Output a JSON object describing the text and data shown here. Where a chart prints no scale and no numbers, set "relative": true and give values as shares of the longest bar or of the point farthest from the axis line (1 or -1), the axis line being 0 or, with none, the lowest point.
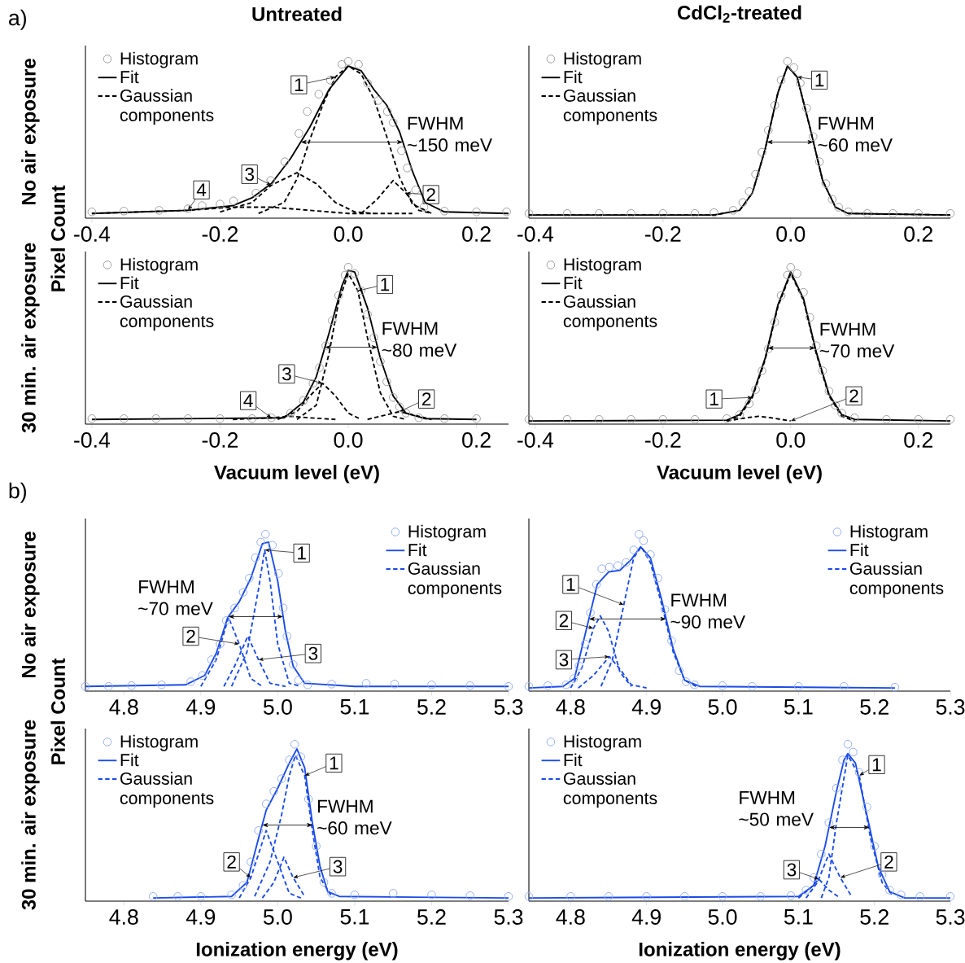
{
  "chart_data": [
    {
      "type": "line",
      "relative": true,
      "title": "Untreated",
      "ylabel": "No air exposure",
      "xlim": [
        -0.41,
        0.25
      ],
      "xticks": [
        {
          "value": -0.4,
          "label": "-0.4"
        },
        {
          "value": -0.2,
          "label": "-0.2"
        },
        {
          "value": 0.0,
          "label": "0.0"
        },
        {
          "value": 0.2,
          "label": "0.2"
        }
      ],
      "legend": "top left",
      "annotations": [
        "a)",
        "Pixel Count",
        {
          "text": "1",
          "x": -0.077,
          "y": 0.85
        },
        {
          "text": "2",
          "x": 0.129,
          "y": 0.15
        },
        {
          "text": "3",
          "x": -0.154,
          "y": 0.28
        },
        {
          "text": "4",
          "x": -0.229,
          "y": 0.18
        },
        "FWHM ~150 meV"
      ],
      "series": [
        {
          "name": "Histogram",
          "type": "scatter",
          "marker": "circle",
          "color": "#999999",
          "x": [
            -0.4,
            -0.35,
            -0.295,
            -0.25,
            -0.228,
            -0.2,
            -0.179,
            -0.144,
            -0.121,
            -0.099,
            -0.077,
            -0.064,
            -0.046,
            -0.028,
            -0.01,
            0.0,
            0.016,
            0.03,
            0.047,
            0.061,
            0.07,
            0.083,
            0.092,
            0.105,
            0.118,
            0.15,
            0.2,
            0.247
          ],
          "values": [
            0.04,
            0.045,
            0.05,
            0.06,
            0.08,
            0.09,
            0.11,
            0.16,
            0.24,
            0.36,
            0.54,
            0.68,
            0.79,
            0.88,
            0.98,
            1.0,
            0.98,
            0.86,
            0.75,
            0.68,
            0.61,
            0.43,
            0.32,
            0.18,
            0.07,
            0.045,
            0.04,
            0.04
          ]
        },
        {
          "name": "Fit",
          "line_style": "solid",
          "color": "#000000",
          "x": [
            -0.4,
            -0.25,
            -0.18,
            -0.15,
            -0.12,
            -0.09,
            -0.06,
            -0.03,
            0.0,
            0.02,
            0.04,
            0.06,
            0.08,
            0.1,
            0.12,
            0.15,
            0.25
          ],
          "values": [
            0.03,
            0.05,
            0.08,
            0.13,
            0.22,
            0.38,
            0.58,
            0.82,
            0.97,
            0.94,
            0.82,
            0.72,
            0.55,
            0.3,
            0.1,
            0.04,
            0.03
          ]
        },
        {
          "name": "Gaussian components",
          "line_style": "dashed",
          "color": "#000000",
          "x": [
            -0.14,
            -0.1,
            -0.08,
            -0.06,
            -0.04,
            -0.02,
            0.0,
            0.02,
            0.04,
            0.06,
            0.08,
            0.1,
            0.13
          ],
          "values": [
            0.03,
            0.1,
            0.25,
            0.5,
            0.72,
            0.9,
            0.97,
            0.92,
            0.76,
            0.52,
            0.26,
            0.09,
            0.03
          ]
        },
        {
          "line_style": "dashed",
          "color": "#000000",
          "x": [
            0.02,
            0.045,
            0.07,
            0.09,
            0.11,
            0.13
          ],
          "values": [
            0.03,
            0.12,
            0.24,
            0.16,
            0.05,
            0.03
          ]
        },
        {
          "line_style": "dashed",
          "color": "#000000",
          "x": [
            -0.2,
            -0.15,
            -0.12,
            -0.08,
            -0.05,
            -0.02,
            0.01,
            0.04
          ],
          "values": [
            0.04,
            0.1,
            0.21,
            0.29,
            0.22,
            0.1,
            0.04,
            0.03
          ]
        },
        {
          "line_style": "dashed",
          "color": "#000000",
          "x": [
            -0.4,
            -0.25,
            -0.18,
            -0.12,
            -0.06,
            0.0,
            0.1
          ],
          "values": [
            0.03,
            0.05,
            0.07,
            0.07,
            0.05,
            0.03,
            0.03
          ]
        }
      ]
    },
    {
      "type": "line",
      "relative": true,
      "title": "CdCl$_{2}$-treated",
      "xlim": [
        -0.41,
        0.25
      ],
      "xticks": [
        {
          "value": -0.4,
          "label": "-0.4"
        },
        {
          "value": -0.2,
          "label": "-0.2"
        },
        {
          "value": 0.0,
          "label": "0.0"
        },
        {
          "value": 0.2,
          "label": "0.2"
        }
      ],
      "legend": "top left",
      "annotations": [
        {
          "text": "1",
          "x": 0.045,
          "y": 0.88
        },
        "FWHM ~60 meV"
      ],
      "series": [
        {
          "name": "Histogram",
          "type": "scatter",
          "marker": "circle",
          "color": "#999999",
          "x": [
            -0.41,
            -0.35,
            -0.3,
            -0.25,
            -0.2,
            -0.15,
            -0.12,
            -0.09,
            -0.075,
            -0.065,
            -0.055,
            -0.045,
            -0.035,
            -0.025,
            -0.015,
            -0.005,
            0.005,
            0.015,
            0.025,
            0.035,
            0.045,
            0.055,
            0.065,
            0.075,
            0.09,
            0.12,
            0.16,
            0.2,
            0.25
          ],
          "values": [
            0.03,
            0.03,
            0.03,
            0.03,
            0.03,
            0.03,
            0.035,
            0.05,
            0.1,
            0.17,
            0.28,
            0.42,
            0.56,
            0.72,
            0.88,
            1.0,
            0.96,
            0.86,
            0.7,
            0.52,
            0.36,
            0.22,
            0.12,
            0.07,
            0.04,
            0.03,
            0.03,
            0.03,
            0.03
          ]
        },
        {
          "name": "Fit",
          "line_style": "solid",
          "color": "#000000",
          "x": [
            -0.41,
            -0.12,
            -0.08,
            -0.06,
            -0.04,
            -0.02,
            -0.005,
            0.01,
            0.03,
            0.05,
            0.07,
            0.09,
            0.25
          ],
          "values": [
            0.02,
            0.02,
            0.05,
            0.16,
            0.44,
            0.8,
            0.97,
            0.9,
            0.58,
            0.24,
            0.07,
            0.03,
            0.02
          ]
        },
        {
          "name": "Gaussian components",
          "line_style": "dashed",
          "color": "#000000",
          "x": [
            -0.41,
            -0.12,
            -0.08,
            -0.06,
            -0.04,
            -0.02,
            -0.005,
            0.01,
            0.03,
            0.05,
            0.07,
            0.09,
            0.25
          ],
          "values": [
            0.02,
            0.02,
            0.05,
            0.16,
            0.44,
            0.8,
            0.97,
            0.9,
            0.58,
            0.24,
            0.07,
            0.03,
            0.02
          ]
        }
      ]
    },
    {
      "type": "line",
      "relative": true,
      "ylabel": "30 min. air exposure",
      "xlabel": "Vacuum level (eV)",
      "xlim": [
        -0.41,
        0.25
      ],
      "xticks": [
        {
          "value": -0.4,
          "label": "-0.4"
        },
        {
          "value": -0.2,
          "label": "-0.2"
        },
        {
          "value": 0.0,
          "label": "0.0"
        },
        {
          "value": 0.2,
          "label": "0.2"
        }
      ],
      "legend": "top left",
      "annotations": [
        {
          "text": "1",
          "x": 0.057,
          "y": 0.89
        },
        {
          "text": "2",
          "x": 0.122,
          "y": 0.16
        },
        {
          "text": "3",
          "x": -0.096,
          "y": 0.32
        },
        {
          "text": "4",
          "x": -0.156,
          "y": 0.15
        },
        "FWHM ~80 meV"
      ],
      "series": [
        {
          "name": "Histogram",
          "type": "scatter",
          "marker": "circle",
          "color": "#999999",
          "x": [
            -0.4,
            -0.35,
            -0.3,
            -0.25,
            -0.2,
            -0.15,
            -0.12,
            -0.09,
            -0.07,
            -0.055,
            -0.045,
            -0.035,
            -0.025,
            -0.015,
            -0.005,
            0.0,
            0.01,
            0.02,
            0.03,
            0.04,
            0.05,
            0.06,
            0.07,
            0.08,
            0.09,
            0.11,
            0.15,
            0.2
          ],
          "values": [
            0.035,
            0.035,
            0.035,
            0.035,
            0.035,
            0.035,
            0.04,
            0.07,
            0.15,
            0.26,
            0.36,
            0.5,
            0.66,
            0.82,
            0.95,
            1.0,
            0.96,
            0.85,
            0.7,
            0.55,
            0.4,
            0.27,
            0.17,
            0.11,
            0.07,
            0.04,
            0.035,
            0.035
          ]
        },
        {
          "name": "Fit",
          "line_style": "solid",
          "color": "#000000",
          "x": [
            -0.4,
            -0.1,
            -0.07,
            -0.05,
            -0.03,
            -0.01,
            0.0,
            0.01,
            0.03,
            0.05,
            0.07,
            0.09,
            0.12,
            0.2
          ],
          "values": [
            0.03,
            0.04,
            0.14,
            0.3,
            0.58,
            0.88,
            0.98,
            0.97,
            0.74,
            0.42,
            0.18,
            0.07,
            0.035,
            0.03
          ]
        },
        {
          "name": "Gaussian components",
          "line_style": "dashed",
          "color": "#000000",
          "x": [
            -0.08,
            -0.05,
            -0.03,
            -0.015,
            0.0,
            0.015,
            0.03,
            0.05,
            0.07,
            0.09
          ],
          "values": [
            0.03,
            0.12,
            0.45,
            0.78,
            0.96,
            0.85,
            0.55,
            0.2,
            0.05,
            0.03
          ]
        },
        {
          "line_style": "dashed",
          "color": "#000000",
          "x": [
            0.03,
            0.06,
            0.08,
            0.1,
            0.13
          ],
          "values": [
            0.03,
            0.06,
            0.08,
            0.06,
            0.03
          ]
        },
        {
          "line_style": "dashed",
          "color": "#000000",
          "x": [
            -0.11,
            -0.08,
            -0.06,
            -0.04,
            -0.02,
            0.0,
            0.02
          ],
          "values": [
            0.03,
            0.08,
            0.18,
            0.26,
            0.18,
            0.07,
            0.03
          ]
        },
        {
          "line_style": "dashed",
          "color": "#000000",
          "x": [
            -0.18,
            -0.12,
            -0.09,
            -0.06,
            -0.02
          ],
          "values": [
            0.03,
            0.04,
            0.05,
            0.04,
            0.03
          ]
        }
      ]
    },
    {
      "type": "line",
      "relative": true,
      "xlabel": "Vacuum level (eV)",
      "xlim": [
        -0.41,
        0.25
      ],
      "xticks": [
        {
          "value": -0.4,
          "label": "-0.4"
        },
        {
          "value": -0.2,
          "label": "-0.2"
        },
        {
          "value": 0.0,
          "label": "0.0"
        },
        {
          "value": 0.2,
          "label": "0.2"
        }
      ],
      "legend": "top left",
      "annotations": [
        {
          "text": "1",
          "x": -0.12,
          "y": 0.16
        },
        {
          "text": "2",
          "x": 0.099,
          "y": 0.18
        },
        "FWHM ~70 meV"
      ],
      "series": [
        {
          "name": "Histogram",
          "type": "scatter",
          "marker": "circle",
          "color": "#999999",
          "x": [
            -0.41,
            -0.35,
            -0.3,
            -0.25,
            -0.2,
            -0.15,
            -0.1,
            -0.08,
            -0.065,
            -0.055,
            -0.045,
            -0.035,
            -0.025,
            -0.015,
            -0.005,
            0.0,
            0.01,
            0.02,
            0.03,
            0.04,
            0.05,
            0.06,
            0.07,
            0.08,
            0.1,
            0.15,
            0.2,
            0.25
          ],
          "values": [
            0.03,
            0.03,
            0.03,
            0.03,
            0.03,
            0.03,
            0.035,
            0.06,
            0.13,
            0.22,
            0.34,
            0.48,
            0.65,
            0.82,
            0.95,
            1.0,
            0.96,
            0.84,
            0.68,
            0.5,
            0.34,
            0.21,
            0.12,
            0.07,
            0.04,
            0.03,
            0.03,
            0.03
          ]
        },
        {
          "name": "Fit",
          "line_style": "solid",
          "color": "#000000",
          "x": [
            -0.41,
            -0.1,
            -0.08,
            -0.06,
            -0.04,
            -0.02,
            0.0,
            0.02,
            0.04,
            0.06,
            0.08,
            0.1,
            0.25
          ],
          "values": [
            0.02,
            0.025,
            0.06,
            0.18,
            0.42,
            0.76,
            0.97,
            0.8,
            0.46,
            0.19,
            0.06,
            0.03,
            0.02
          ]
        },
        {
          "name": "Gaussian components",
          "line_style": "dashed",
          "color": "#000000",
          "x": [
            -0.1,
            -0.08,
            -0.06,
            -0.04,
            -0.02,
            0.0,
            0.02,
            0.04,
            0.06,
            0.08,
            0.1
          ],
          "values": [
            0.02,
            0.05,
            0.17,
            0.41,
            0.75,
            0.96,
            0.79,
            0.45,
            0.18,
            0.05,
            0.02
          ]
        },
        {
          "line_style": "dashed",
          "color": "#000000",
          "x": [
            -0.1,
            -0.07,
            -0.05,
            -0.03,
            0.0
          ],
          "values": [
            0.02,
            0.04,
            0.05,
            0.04,
            0.02
          ]
        }
      ]
    },
    {
      "type": "line",
      "relative": true,
      "ylabel": "No air exposure",
      "xlim": [
        4.75,
        5.3
      ],
      "xticks": [
        4.8,
        4.9,
        {
          "value": 5.0,
          "label": "5.0"
        },
        5.1,
        5.2,
        5.3
      ],
      "legend": "top right",
      "annotations": [
        "b)",
        "Pixel Count",
        {
          "text": "1",
          "x": 5.031,
          "y": 0.88
        },
        {
          "text": "2",
          "x": 4.887,
          "y": 0.35
        },
        {
          "text": "3",
          "x": 5.046,
          "y": 0.24
        },
        "FWHM ~70 meV"
      ],
      "series": [
        {
          "name": "Histogram",
          "type": "scatter",
          "marker": "circle",
          "color": "#8faaf0",
          "x": [
            4.75,
            4.78,
            4.81,
            4.849,
            4.887,
            4.902,
            4.914,
            4.925,
            4.933,
            4.944,
            4.955,
            4.963,
            4.971,
            4.978,
            4.984,
            4.993,
            5.001,
            5.007,
            5.012,
            5.02,
            5.027,
            5.039,
            5.07,
            5.115,
            5.152,
            5.2,
            5.25,
            5.3
          ],
          "values": [
            0.03,
            0.03,
            0.035,
            0.04,
            0.06,
            0.1,
            0.2,
            0.3,
            0.45,
            0.53,
            0.63,
            0.72,
            0.85,
            0.95,
            1.0,
            0.93,
            0.75,
            0.53,
            0.35,
            0.17,
            0.07,
            0.04,
            0.045,
            0.05,
            0.045,
            0.04,
            0.035,
            0.03
          ]
        },
        {
          "name": "Fit",
          "line_style": "solid",
          "color": "#1a4be8",
          "x": [
            4.75,
            4.88,
            4.905,
            4.92,
            4.935,
            4.95,
            4.965,
            4.98,
            4.988,
            5.0,
            5.01,
            5.02,
            5.035,
            5.1,
            5.3
          ],
          "values": [
            0.03,
            0.04,
            0.1,
            0.24,
            0.47,
            0.57,
            0.72,
            0.94,
            0.95,
            0.7,
            0.38,
            0.16,
            0.05,
            0.03,
            0.03
          ]
        },
        {
          "name": "Gaussian components",
          "line_style": "dashed",
          "color": "#1a4be8",
          "x": [
            4.94,
            4.96,
            4.975,
            4.983,
            4.99,
            5.0,
            5.015,
            5.03
          ],
          "values": [
            0.03,
            0.25,
            0.65,
            0.9,
            0.7,
            0.3,
            0.05,
            0.03
          ]
        },
        {
          "line_style": "dashed",
          "color": "#1a4be8",
          "x": [
            4.9,
            4.92,
            4.936,
            4.95,
            4.965,
            4.98
          ],
          "values": [
            0.03,
            0.2,
            0.47,
            0.3,
            0.08,
            0.03
          ]
        },
        {
          "line_style": "dashed",
          "color": "#1a4be8",
          "x": [
            4.93,
            4.945,
            4.961,
            4.975,
            4.99,
            5.01
          ],
          "values": [
            0.03,
            0.17,
            0.35,
            0.2,
            0.05,
            0.03
          ]
        }
      ]
    },
    {
      "type": "line",
      "relative": true,
      "xlim": [
        4.745,
        5.3
      ],
      "xticks": [
        4.8,
        4.9,
        {
          "value": 5.0,
          "label": "5.0"
        },
        5.1,
        5.2,
        5.3
      ],
      "legend": "top right",
      "annotations": [
        {
          "text": "1",
          "x": 4.8,
          "y": 0.68
        },
        {
          "text": "2",
          "x": 4.791,
          "y": 0.45
        },
        {
          "text": "3",
          "x": 4.791,
          "y": 0.2
        },
        "FWHM ~90 meV"
      ],
      "series": [
        {
          "name": "Histogram",
          "type": "scatter",
          "marker": "circle",
          "color": "#8faaf0",
          "x": [
            4.745,
            4.77,
            4.794,
            4.804,
            4.811,
            4.819,
            4.826,
            4.834,
            4.841,
            4.851,
            4.862,
            4.873,
            4.883,
            4.89,
            4.896,
            4.905,
            4.915,
            4.924,
            4.933,
            4.943,
            4.952,
            4.963,
            5.0,
            5.039,
            5.1,
            5.16,
            5.227
          ],
          "values": [
            0.03,
            0.035,
            0.04,
            0.08,
            0.16,
            0.3,
            0.5,
            0.68,
            0.78,
            0.79,
            0.8,
            0.82,
            0.9,
            1.0,
            0.96,
            0.87,
            0.72,
            0.52,
            0.32,
            0.13,
            0.06,
            0.04,
            0.035,
            0.03,
            0.03,
            0.03,
            0.025
          ]
        },
        {
          "name": "Fit",
          "line_style": "solid",
          "color": "#1a4be8",
          "x": [
            4.745,
            4.79,
            4.805,
            4.82,
            4.835,
            4.85,
            4.865,
            4.88,
            4.892,
            4.905,
            4.92,
            4.935,
            4.95,
            4.97,
            5.227
          ],
          "values": [
            0.02,
            0.03,
            0.08,
            0.38,
            0.68,
            0.76,
            0.77,
            0.84,
            0.92,
            0.85,
            0.58,
            0.27,
            0.07,
            0.03,
            0.02
          ]
        },
        {
          "name": "Gaussian components",
          "line_style": "dashed",
          "color": "#1a4be8",
          "x": [
            4.84,
            4.855,
            4.87,
            4.883,
            4.893,
            4.905,
            4.92,
            4.935,
            4.95,
            4.965
          ],
          "values": [
            0.03,
            0.2,
            0.55,
            0.85,
            0.92,
            0.82,
            0.55,
            0.25,
            0.07,
            0.03
          ]
        },
        {
          "line_style": "dashed",
          "color": "#1a4be8",
          "x": [
            4.8,
            4.815,
            4.83,
            4.839,
            4.85,
            4.865,
            4.88
          ],
          "values": [
            0.02,
            0.15,
            0.4,
            0.48,
            0.38,
            0.12,
            0.03
          ]
        },
        {
          "line_style": "dashed",
          "color": "#1a4be8",
          "x": [
            4.81,
            4.83,
            4.851,
            4.865,
            4.88,
            4.9
          ],
          "values": [
            0.02,
            0.1,
            0.22,
            0.14,
            0.04,
            0.02
          ]
        }
      ]
    },
    {
      "type": "line",
      "relative": true,
      "ylabel": "30 min. air exposure",
      "xlabel": "Ionization energy (eV)",
      "xlim": [
        4.75,
        5.3
      ],
      "xticks": [
        4.8,
        4.9,
        {
          "value": 5.0,
          "label": "5.0"
        },
        5.1,
        5.2,
        5.3
      ],
      "legend": "top left",
      "annotations": [
        {
          "text": "1",
          "x": 5.073,
          "y": 0.88
        },
        {
          "text": "2",
          "x": 4.94,
          "y": 0.25
        },
        {
          "text": "3",
          "x": 5.078,
          "y": 0.22
        },
        "FWHM ~60 meV"
      ],
      "series": [
        {
          "name": "Histogram",
          "type": "scatter",
          "marker": "circle",
          "color": "#8faaf0",
          "x": [
            4.838,
            4.87,
            4.9,
            4.94,
            4.955,
            4.965,
            4.975,
            4.985,
            4.995,
            5.005,
            5.015,
            5.022,
            5.03,
            5.04,
            5.05,
            5.06,
            5.07,
            5.1,
            5.15,
            5.2,
            5.25,
            5.3
          ],
          "values": [
            0.03,
            0.03,
            0.03,
            0.04,
            0.1,
            0.25,
            0.45,
            0.62,
            0.7,
            0.78,
            0.9,
            1.0,
            0.92,
            0.65,
            0.35,
            0.12,
            0.05,
            0.04,
            0.05,
            0.04,
            0.035,
            0.03
          ]
        },
        {
          "name": "Fit",
          "line_style": "solid",
          "color": "#1a4be8",
          "x": [
            4.838,
            4.94,
            4.96,
            4.975,
            4.985,
            5.0,
            5.015,
            5.025,
            5.035,
            5.045,
            5.055,
            5.065,
            5.08,
            5.3
          ],
          "values": [
            0.02,
            0.03,
            0.12,
            0.4,
            0.58,
            0.72,
            0.88,
            0.97,
            0.85,
            0.5,
            0.22,
            0.06,
            0.03,
            0.02
          ]
        },
        {
          "name": "Gaussian components",
          "line_style": "dashed",
          "color": "#1a4be8",
          "x": [
            4.97,
            4.99,
            5.005,
            5.015,
            5.023,
            5.035,
            5.045,
            5.055,
            5.07
          ],
          "values": [
            0.03,
            0.25,
            0.55,
            0.8,
            0.93,
            0.8,
            0.45,
            0.15,
            0.03
          ]
        },
        {
          "line_style": "dashed",
          "color": "#1a4be8",
          "x": [
            4.95,
            4.965,
            4.985,
            5.0,
            5.015,
            5.03
          ],
          "values": [
            0.02,
            0.15,
            0.45,
            0.25,
            0.05,
            0.02
          ]
        },
        {
          "line_style": "dashed",
          "color": "#1a4be8",
          "x": [
            4.98,
            4.995,
            5.008,
            5.02,
            5.035
          ],
          "values": [
            0.02,
            0.12,
            0.28,
            0.15,
            0.03
          ]
        }
      ]
    },
    {
      "type": "line",
      "relative": true,
      "xlabel": "Ionization energy (eV)",
      "xlim": [
        4.745,
        5.3
      ],
      "xticks": [
        4.8,
        4.9,
        {
          "value": 5.0,
          "label": "5.0"
        },
        5.1,
        5.2,
        5.3
      ],
      "legend": "top left",
      "annotations": [
        {
          "text": "1",
          "x": 5.203,
          "y": 0.87
        },
        {
          "text": "2",
          "x": 5.219,
          "y": 0.25
        },
        {
          "text": "3",
          "x": 5.091,
          "y": 0.2
        },
        "FWHM ~50 meV"
      ],
      "series": [
        {
          "name": "Histogram",
          "type": "scatter",
          "marker": "circle",
          "color": "#8faaf0",
          "x": [
            4.745,
            4.8,
            4.85,
            4.9,
            4.95,
            5.0,
            5.05,
            5.09,
            5.11,
            5.12,
            5.13,
            5.14,
            5.15,
            5.158,
            5.165,
            5.172,
            5.18,
            5.19,
            5.2,
            5.21,
            5.22,
            5.235,
            5.26,
            5.3
          ],
          "values": [
            0.03,
            0.03,
            0.03,
            0.03,
            0.03,
            0.03,
            0.03,
            0.035,
            0.07,
            0.15,
            0.3,
            0.5,
            0.72,
            0.9,
            1.0,
            0.95,
            0.82,
            0.6,
            0.35,
            0.17,
            0.07,
            0.04,
            0.03,
            0.03
          ]
        },
        {
          "name": "Fit",
          "line_style": "solid",
          "color": "#1a4be8",
          "x": [
            4.745,
            5.1,
            5.12,
            5.135,
            5.15,
            5.16,
            5.165,
            5.175,
            5.19,
            5.205,
            5.22,
            5.24,
            5.3
          ],
          "values": [
            0.02,
            0.03,
            0.1,
            0.35,
            0.7,
            0.9,
            0.94,
            0.88,
            0.55,
            0.22,
            0.06,
            0.02,
            0.02
          ]
        },
        {
          "name": "Gaussian components",
          "line_style": "dashed",
          "color": "#1a4be8",
          "x": [
            5.13,
            5.14,
            5.15,
            5.165,
            5.18,
            5.195,
            5.21,
            5.225
          ],
          "values": [
            0.02,
            0.15,
            0.5,
            0.93,
            0.8,
            0.4,
            0.12,
            0.03
          ]
        },
        {
          "line_style": "dashed",
          "color": "#1a4be8",
          "x": [
            5.11,
            5.125,
            5.14,
            5.155,
            5.17
          ],
          "values": [
            0.02,
            0.12,
            0.3,
            0.15,
            0.03
          ]
        },
        {
          "line_style": "dashed",
          "color": "#1a4be8",
          "x": [
            5.1,
            5.115,
            5.127,
            5.14,
            5.155
          ],
          "values": [
            0.02,
            0.08,
            0.14,
            0.07,
            0.02
          ]
        }
      ]
    }
  ]
}
